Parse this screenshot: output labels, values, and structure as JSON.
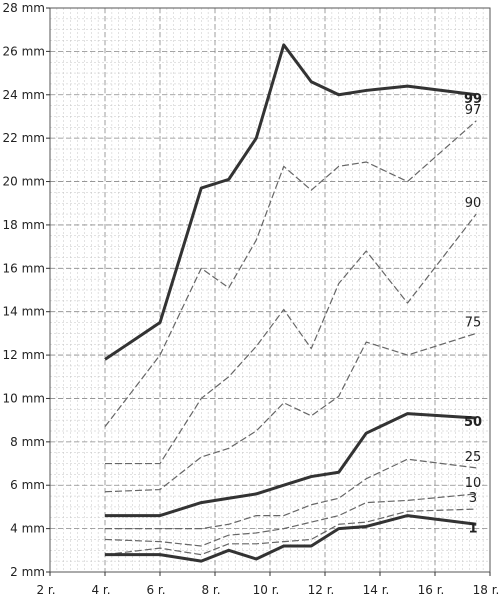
{
  "chart_data": {
    "type": "line",
    "title": "",
    "xlabel": "",
    "ylabel": "",
    "x_unit": "r.",
    "y_unit": "mm",
    "xlim": [
      2,
      18
    ],
    "ylim": [
      2,
      28
    ],
    "x_ticks": [
      2,
      4,
      6,
      8,
      10,
      12,
      14,
      16,
      18
    ],
    "x_tick_labels": [
      "2 r.",
      "4 r.",
      "6 r.",
      "8 r.",
      "10 r.",
      "12 r.",
      "14 r.",
      "16 r.",
      "18 r."
    ],
    "y_ticks": [
      2,
      4,
      6,
      8,
      10,
      12,
      14,
      16,
      18,
      20,
      22,
      24,
      26,
      28
    ],
    "y_tick_labels": [
      "2 mm",
      "4 mm",
      "6 mm",
      "8 mm",
      "10 mm",
      "12 mm",
      "14 mm",
      "16 mm",
      "18 mm",
      "20 mm",
      "22 mm",
      "24 mm",
      "26 mm",
      "28 mm"
    ],
    "grid": true,
    "x": [
      4,
      6,
      7.5,
      8.5,
      9.5,
      10.5,
      11.5,
      12.5,
      13.5,
      15,
      17.5
    ],
    "series": [
      {
        "name": "99",
        "style": "solid-bold",
        "values": [
          11.8,
          13.5,
          19.7,
          20.1,
          22.0,
          26.3,
          24.6,
          24.0,
          24.2,
          24.4,
          24.0
        ]
      },
      {
        "name": "97",
        "style": "dashed",
        "values": [
          8.7,
          12.0,
          16.0,
          15.1,
          17.3,
          20.7,
          19.6,
          20.7,
          20.9,
          20.0,
          22.8
        ]
      },
      {
        "name": "90",
        "style": "dashed",
        "values": [
          7.0,
          7.0,
          10.0,
          11.0,
          12.4,
          14.1,
          12.3,
          15.3,
          16.8,
          14.4,
          18.5
        ]
      },
      {
        "name": "75",
        "style": "dashed",
        "values": [
          5.7,
          5.8,
          7.3,
          7.7,
          8.5,
          9.8,
          9.2,
          10.1,
          12.6,
          12.0,
          13.0
        ]
      },
      {
        "name": "50",
        "style": "solid-bold",
        "values": [
          4.6,
          4.6,
          5.2,
          5.4,
          5.6,
          6.0,
          6.4,
          6.6,
          8.4,
          9.3,
          9.1
        ]
      },
      {
        "name": "25",
        "style": "dashed",
        "values": [
          4.0,
          4.0,
          4.0,
          4.2,
          4.6,
          4.6,
          5.1,
          5.4,
          6.3,
          7.2,
          6.8
        ]
      },
      {
        "name": "10",
        "style": "dashed",
        "values": [
          3.5,
          3.4,
          3.2,
          3.7,
          3.8,
          4.0,
          4.3,
          4.6,
          5.2,
          5.3,
          5.6
        ]
      },
      {
        "name": "3",
        "style": "dashed",
        "values": [
          2.8,
          3.1,
          2.8,
          3.3,
          3.3,
          3.4,
          3.5,
          4.2,
          4.3,
          4.8,
          4.9
        ]
      },
      {
        "name": "1",
        "style": "solid-bold",
        "values": [
          2.8,
          2.8,
          2.5,
          3.0,
          2.6,
          3.2,
          3.2,
          4.0,
          4.1,
          4.6,
          4.2
        ]
      }
    ]
  }
}
